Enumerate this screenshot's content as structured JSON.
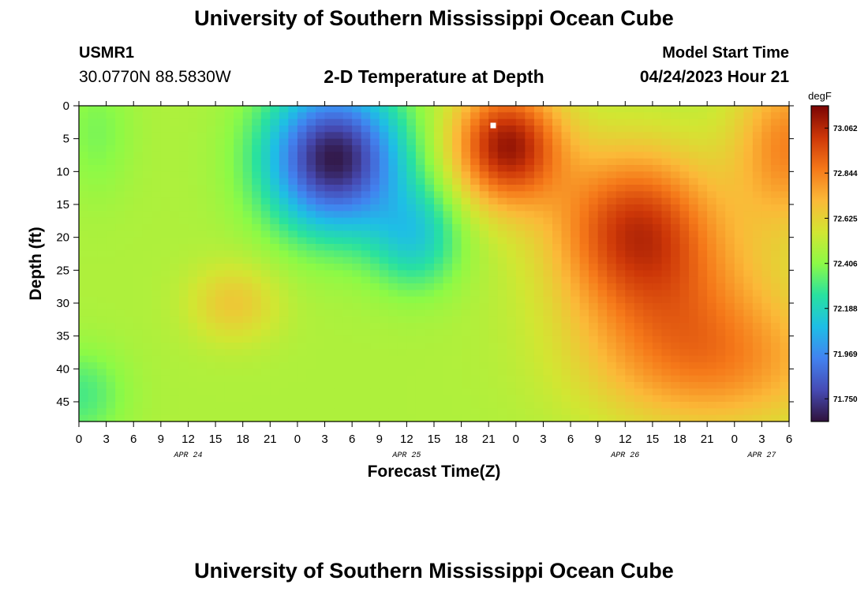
{
  "header": {
    "title": "University of Southern Mississippi Ocean Cube",
    "station_id": "USMR1",
    "coordinates": "30.0770N  88.5830W",
    "subtitle": "2-D Temperature at Depth",
    "model_start_label": "Model Start Time",
    "model_start_value": "04/24/2023 Hour 21"
  },
  "footer": {
    "title": "University of Southern Mississippi Ocean Cube"
  },
  "chart_data": {
    "type": "heatmap",
    "xlabel": "Forecast Time(Z)",
    "ylabel": "Depth (ft)",
    "x_hours_range": [
      0,
      78
    ],
    "ylim": [
      0,
      48
    ],
    "y_inverted": true,
    "x_tick_labels": [
      "0",
      "3",
      "6",
      "9",
      "12",
      "15",
      "18",
      "21",
      "0",
      "3",
      "6",
      "9",
      "12",
      "15",
      "18",
      "21",
      "0",
      "3",
      "6",
      "9",
      "12",
      "15",
      "18",
      "21",
      "0",
      "3",
      "6"
    ],
    "y_ticks": [
      0,
      5,
      10,
      15,
      20,
      25,
      30,
      35,
      40,
      45
    ],
    "date_labels": [
      {
        "label": "APR 24",
        "at_hour": 12
      },
      {
        "label": "APR 25",
        "at_hour": 36
      },
      {
        "label": "APR 26",
        "at_hour": 60
      },
      {
        "label": "APR 27",
        "at_hour": 75
      }
    ],
    "colorbar": {
      "unit": "degF",
      "min": 71.64,
      "max": 73.17,
      "tick_values": [
        73.062,
        72.844,
        72.625,
        72.406,
        72.188,
        71.969,
        71.75
      ],
      "tick_labels": [
        "73.062",
        "72.844",
        "72.625",
        "72.406",
        "72.188",
        "71.969",
        "71.750"
      ],
      "colormap": "turbo"
    },
    "marker": {
      "x_hours": 45.5,
      "y_ft": 3
    },
    "grid": false,
    "legend": "right"
  }
}
